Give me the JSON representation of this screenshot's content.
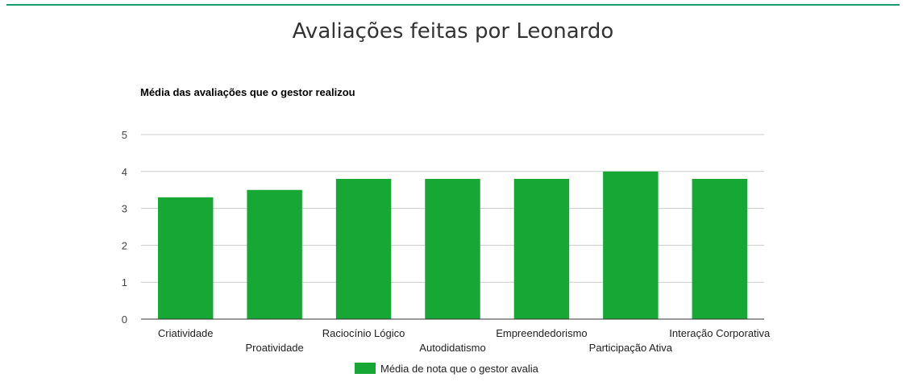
{
  "page": {
    "title": "Avaliações feitas por Leonardo",
    "accent_color": "#1d9b6c"
  },
  "chart_data": {
    "type": "bar",
    "title": "Média das avaliações que o gestor realizou",
    "categories": [
      "Criatividade",
      "Proatividade",
      "Raciocínio Lógico",
      "Autodidatismo",
      "Empreendedorismo",
      "Participação Ativa",
      "Interação Corporativa"
    ],
    "series": [
      {
        "name": "Média de nota que o gestor avalia",
        "values": [
          3.3,
          3.5,
          3.8,
          3.8,
          3.8,
          4.0,
          3.8
        ],
        "color": "#16a734"
      }
    ],
    "yticks": [
      "0",
      "1",
      "2",
      "3",
      "4",
      "5"
    ],
    "ylim": [
      0,
      5
    ],
    "grid": true,
    "legend": "bottom"
  }
}
